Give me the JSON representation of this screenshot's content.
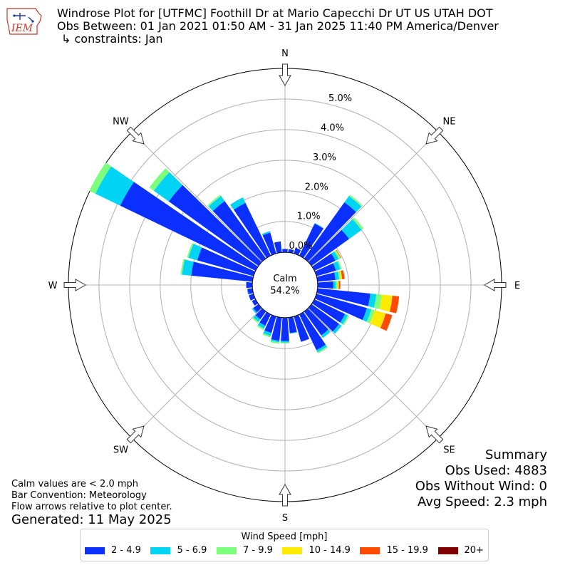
{
  "header": {
    "title": "Windrose Plot for [UTFMC] Foothill Dr at Mario Capecchi Dr UT US UTAH DOT",
    "period": "Obs Between: 01 Jan 2021 01:50 AM - 31 Jan 2025 11:40 PM America/Denver",
    "constraints": "↳ constraints: Jan",
    "logo_text": "IEM"
  },
  "footer": {
    "calm_note": "Calm values are < 2.0 mph",
    "bar_convention": "Bar Convention: Meteorology",
    "flow_note": "Flow arrows relative to plot center.",
    "generated": "Generated: 11 May 2025"
  },
  "summary": {
    "title": "Summary",
    "obs_used": "Obs Used: 4883",
    "obs_without_wind": "Obs Without Wind: 0",
    "avg_speed": "Avg Speed: 2.3 mph"
  },
  "chart_data": {
    "type": "windrose",
    "calm_label": "Calm",
    "calm_value": "54.2%",
    "radial_ticks": [
      "0.0%",
      "1.0%",
      "2.0%",
      "3.0%",
      "4.0%",
      "5.0%"
    ],
    "radial_max_percent": 6.0,
    "calm_radius_percent": 1.08,
    "compass_labels": [
      "N",
      "NE",
      "E",
      "SE",
      "S",
      "SW",
      "W",
      "NW"
    ],
    "legend_title": "Wind Speed [mph]",
    "speed_bins": [
      {
        "label": "2 - 4.9",
        "color": "#0a2fff"
      },
      {
        "label": "5 - 6.9",
        "color": "#00d4f5"
      },
      {
        "label": "7 - 9.9",
        "color": "#7cff7c"
      },
      {
        "label": "10 - 14.9",
        "color": "#ffea00"
      },
      {
        "label": "15 - 19.9",
        "color": "#ff4a00"
      },
      {
        "label": "20+",
        "color": "#800000"
      }
    ],
    "direction_step_deg": 10,
    "directions": [
      {
        "dir": 0,
        "values": [
          0.1
        ]
      },
      {
        "dir": 10,
        "values": [
          0.1
        ]
      },
      {
        "dir": 20,
        "values": [
          0.18
        ]
      },
      {
        "dir": 30,
        "values": [
          1.15,
          0.02
        ]
      },
      {
        "dir": 40,
        "values": [
          2.25,
          0.25,
          0.05
        ]
      },
      {
        "dir": 50,
        "values": [
          1.5,
          0.5,
          0.08
        ]
      },
      {
        "dir": 60,
        "values": [
          0.75,
          0.12,
          0.05,
          0.02,
          0.02
        ]
      },
      {
        "dir": 70,
        "values": [
          0.65,
          0.15,
          0.05
        ]
      },
      {
        "dir": 80,
        "values": [
          0.58,
          0.12,
          0.05,
          0.05,
          0.08
        ]
      },
      {
        "dir": 90,
        "values": [
          0.5,
          0.08,
          0.05,
          0.05,
          0.05
        ]
      },
      {
        "dir": 100,
        "values": [
          1.72,
          0.2,
          0.18,
          0.35,
          0.22
        ]
      },
      {
        "dir": 110,
        "values": [
          1.7,
          0.15,
          0.12,
          0.37,
          0.22
        ]
      },
      {
        "dir": 120,
        "values": [
          1.1,
          0.1,
          0.05
        ]
      },
      {
        "dir": 130,
        "values": [
          1.1,
          0.1
        ]
      },
      {
        "dir": 140,
        "values": [
          0.95,
          0.1
        ]
      },
      {
        "dir": 150,
        "values": [
          1.28,
          0.08,
          0.04
        ]
      },
      {
        "dir": 160,
        "values": [
          0.85
        ]
      },
      {
        "dir": 170,
        "values": [
          0.5,
          0.02
        ]
      },
      {
        "dir": 180,
        "values": [
          0.75,
          0.05,
          0.03
        ]
      },
      {
        "dir": 190,
        "values": [
          0.75,
          0.05,
          0.05
        ]
      },
      {
        "dir": 200,
        "values": [
          0.55,
          0.1,
          0.05
        ]
      },
      {
        "dir": 210,
        "values": [
          0.4,
          0.1,
          0.05
        ]
      },
      {
        "dir": 220,
        "values": [
          0.3,
          0.1,
          0.05
        ]
      },
      {
        "dir": 230,
        "values": [
          0.2,
          0.05
        ]
      },
      {
        "dir": 240,
        "values": [
          0.12
        ]
      },
      {
        "dir": 250,
        "values": [
          0.15
        ]
      },
      {
        "dir": 260,
        "values": [
          0.15,
          0.02
        ]
      },
      {
        "dir": 270,
        "values": [
          0.18,
          0.02
        ]
      },
      {
        "dir": 280,
        "values": [
          2.0,
          0.3,
          0.05
        ]
      },
      {
        "dir": 290,
        "values": [
          1.9,
          0.3,
          0.05
        ]
      },
      {
        "dir": 300,
        "values": [
          4.9,
          0.9,
          0.22
        ]
      },
      {
        "dir": 310,
        "values": [
          3.6,
          0.6,
          0.18
        ]
      },
      {
        "dir": 320,
        "values": [
          2.3,
          0.2,
          0.05
        ]
      },
      {
        "dir": 330,
        "values": [
          1.9,
          0.2
        ]
      },
      {
        "dir": 340,
        "values": [
          0.7,
          0.05
        ]
      },
      {
        "dir": 350,
        "values": [
          0.35
        ]
      }
    ]
  }
}
